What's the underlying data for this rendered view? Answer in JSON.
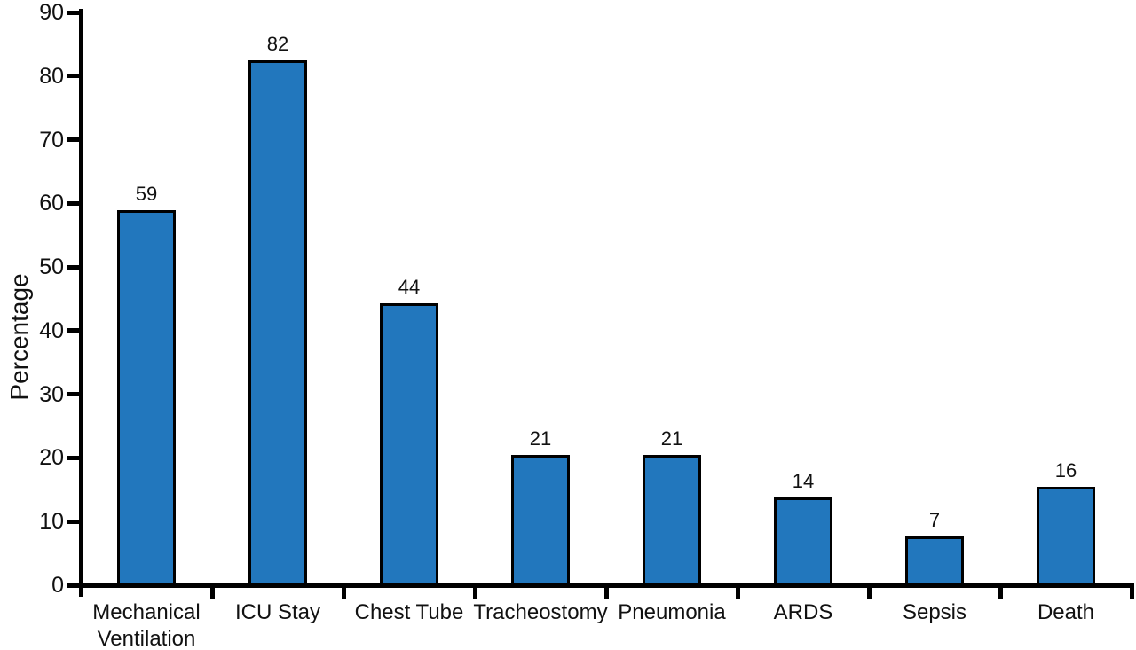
{
  "chart_data": {
    "type": "bar",
    "title": "",
    "xlabel": "",
    "ylabel": "Percentage",
    "categories": [
      "Mechanical\nVentilation",
      "ICU Stay",
      "Chest Tube",
      "Tracheostomy",
      "Pneumonia",
      "ARDS",
      "Sepsis",
      "Death"
    ],
    "values": [
      59,
      82,
      44,
      21,
      21,
      14,
      7,
      16
    ],
    "drawn_heights": [
      59,
      82.5,
      44.3,
      20.5,
      20.5,
      13.8,
      7.7,
      15.5
    ],
    "ylim": [
      0,
      90
    ],
    "yticks": [
      0,
      10,
      20,
      30,
      40,
      50,
      60,
      70,
      80,
      90
    ],
    "grid": false,
    "legend_position": "none",
    "bar_color": "#2277BD",
    "bar_border_color": "#000000",
    "axis_color": "#000000",
    "text_color": "#111111"
  }
}
